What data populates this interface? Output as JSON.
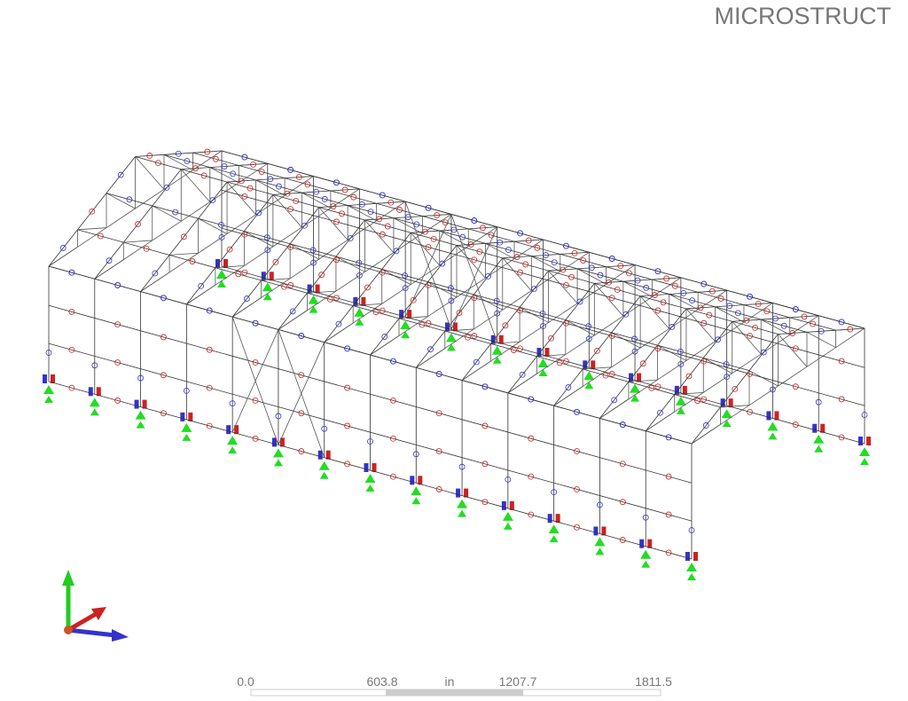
{
  "header": {
    "title": "MICROSTRUCT"
  },
  "scale_bar": {
    "ticks": [
      "0.0",
      "603.8",
      "1207.7",
      "1811.5"
    ],
    "unit": "in"
  }
}
